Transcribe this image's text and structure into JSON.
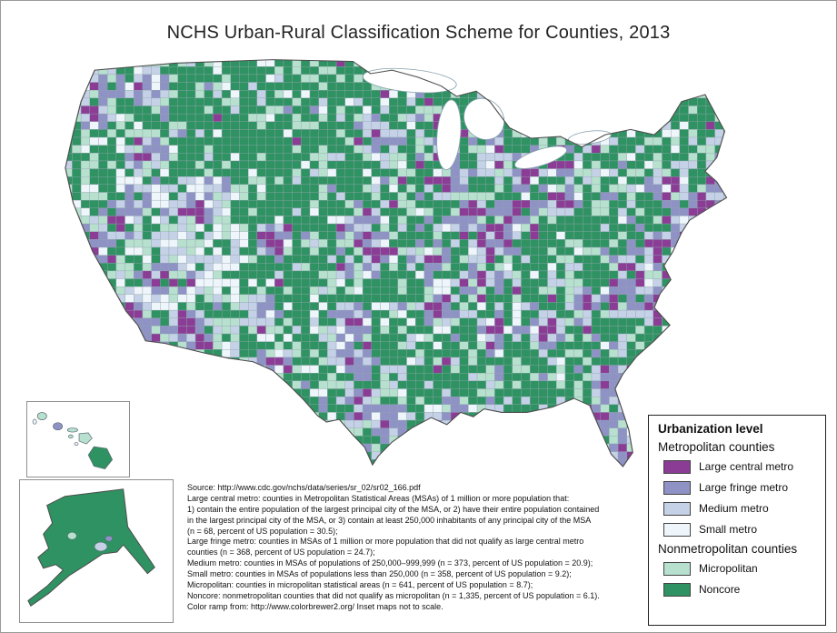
{
  "title": "NCHS Urban-Rural Classification Scheme for Counties, 2013",
  "legend": {
    "title": "Urbanization level",
    "groups": [
      {
        "label": "Metropolitan counties",
        "items": [
          {
            "label": "Large central metro",
            "color": "#8b3d96"
          },
          {
            "label": "Large fringe metro",
            "color": "#8f92c5"
          },
          {
            "label": "Medium metro",
            "color": "#c5d1e7"
          },
          {
            "label": "Small metro",
            "color": "#eff6fb"
          }
        ]
      },
      {
        "label": "Nonmetropolitan counties",
        "items": [
          {
            "label": "Micropolitan",
            "color": "#b7e1ce"
          },
          {
            "label": "Noncore",
            "color": "#2f9262"
          }
        ]
      }
    ]
  },
  "notes": {
    "lines": [
      "Source: http://www.cdc.gov/nchs/data/series/sr_02/sr02_166.pdf",
      "Large central metro: counties in Metropolitan Statistical Areas (MSAs) of 1 million or more population that:",
      "1) contain the entire population of the largest principal city of the MSA, or 2) have their entire population contained",
      "in the largest principal city of the MSA, or 3) contain at least 250,000 inhabitants of any principal city of the MSA",
      "(n = 68, percent of US population = 30.5);",
      "Large fringe metro: counties in MSAs of 1 million or more population that did not qualify as large central metro",
      "counties (n = 368, percent of US population = 24.7);",
      "Medium metro: counties in MSAs of populations of 250,000–999,999 (n = 373, percent of US population = 20.9);",
      "Small metro: counties in MSAs of populations less than 250,000 (n = 358, percent of US population = 9.2);",
      "Micropolitan: counties in micropolitan statistical areas (n = 641, percent of US population = 8.7);",
      "Noncore: nonmetropolitan counties that did not qualify as micropolitan (n = 1,335, percent of US population = 6.1).",
      "Color ramp from: http://www.colorbrewer2.org/  Inset maps not to scale."
    ]
  }
}
